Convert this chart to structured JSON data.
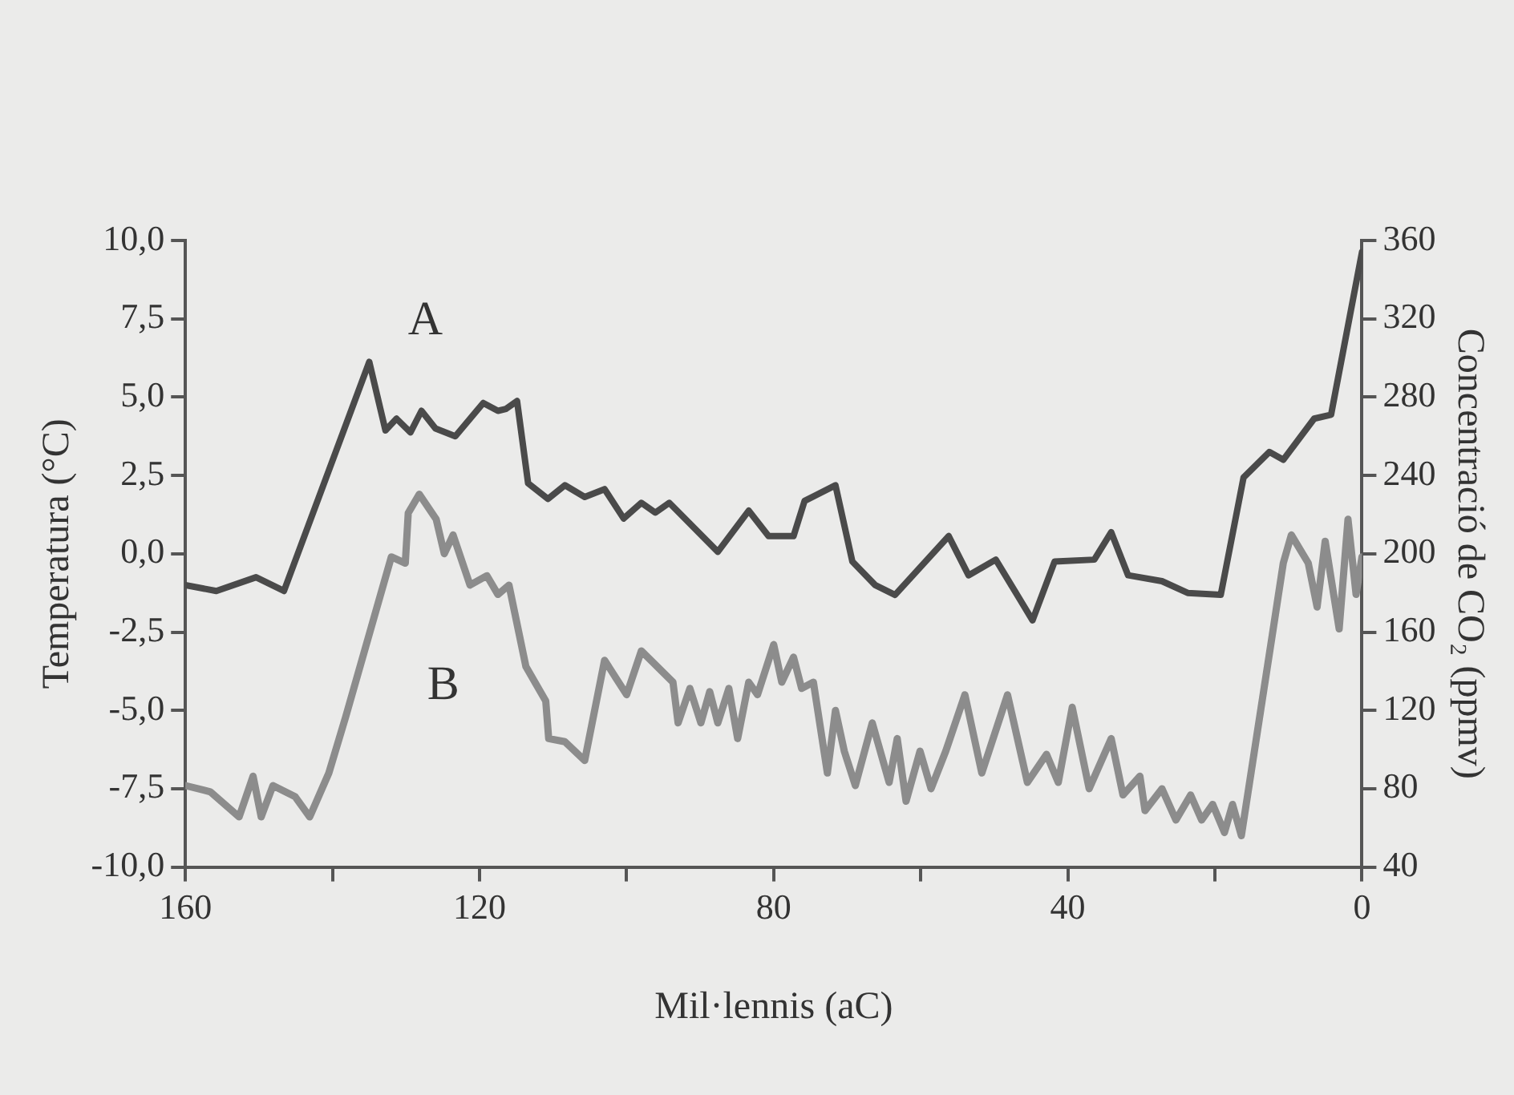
{
  "chart_data": {
    "type": "line",
    "xlabel": "Mil·lennis (aC)",
    "ylabel": "Temperatura (°C)",
    "y2label": "Concentració de CO₂ (ppmv)",
    "xlim": [
      160,
      0
    ],
    "xticks": [
      160,
      {
        "value": 140,
        "label": null
      },
      120,
      {
        "value": 100,
        "label": null
      },
      80,
      {
        "value": 60,
        "label": null
      },
      40,
      {
        "value": 20,
        "label": null
      },
      0
    ],
    "ylim": [
      -10,
      10
    ],
    "yticks": [
      {
        "value": -10,
        "label": "-10,0"
      },
      {
        "value": -7.5,
        "label": "-7,5"
      },
      {
        "value": -5,
        "label": "-5,0"
      },
      {
        "value": -2.5,
        "label": "-2,5"
      },
      {
        "value": 0,
        "label": "0,0"
      },
      {
        "value": 2.5,
        "label": "2,5"
      },
      {
        "value": 5,
        "label": "5,0"
      },
      {
        "value": 7.5,
        "label": "7,5"
      },
      {
        "value": 10,
        "label": "10,0"
      }
    ],
    "y2lim": [
      40,
      360
    ],
    "y2ticks": [
      40,
      80,
      120,
      160,
      200,
      240,
      280,
      320,
      360
    ],
    "grid": false,
    "legend": false,
    "marker": "none",
    "line_style": "solid",
    "series": [
      {
        "name": "A",
        "color": "#4a4a4a",
        "axis": "y2",
        "x": [
          160,
          155.8,
          150.4,
          146.6,
          135,
          132.8,
          131.3,
          129.4,
          127.9,
          126,
          123.3,
          119.5,
          117.5,
          116.4,
          114.9,
          113.4,
          110.7,
          108.4,
          105.7,
          103,
          100.4,
          98,
          96.1,
          94.2,
          87.6,
          83.4,
          80.7,
          77.3,
          75.8,
          71.6,
          69.3,
          66.2,
          63.5,
          56.2,
          53.5,
          49.8,
          44.8,
          41.8,
          36.4,
          34.1,
          31.8,
          27.2,
          23.7,
          19.2,
          16.1,
          12.6,
          10.7,
          6.5,
          4.2,
          0
        ],
        "values": [
          184,
          181,
          188,
          181,
          298,
          263,
          269,
          262,
          273,
          264,
          260,
          277,
          273,
          274,
          278,
          236,
          228,
          235,
          229,
          233,
          218,
          226,
          221,
          226,
          201,
          222,
          209,
          209,
          227,
          235,
          196,
          184,
          179,
          209,
          189,
          197,
          166,
          196,
          197,
          211,
          189,
          186,
          180,
          179,
          239,
          252,
          248,
          269,
          271,
          354
        ]
      },
      {
        "name": "B",
        "color": "#8c8c8c",
        "x": [
          160,
          156.6,
          152.7,
          150.8,
          149.7,
          148.1,
          145.1,
          143.1,
          140.5,
          138.2,
          132,
          130.1,
          129.7,
          128.2,
          125.9,
          124.8,
          123.6,
          121.3,
          119,
          117.5,
          116,
          113.7,
          111,
          110.6,
          108.4,
          105.7,
          103,
          100,
          98,
          93.7,
          93,
          91.4,
          89.9,
          88.7,
          87.6,
          86.1,
          84.9,
          83.4,
          82.2,
          80,
          78.9,
          77.3,
          76.2,
          74.6,
          72.7,
          71.6,
          70.4,
          68.9,
          66.6,
          64.3,
          63.2,
          62,
          60.1,
          58.6,
          56.6,
          54,
          51.7,
          48.2,
          45.5,
          42.9,
          41.3,
          39.4,
          37.1,
          34.1,
          32.5,
          30.2,
          29.5,
          27.2,
          25.3,
          23.3,
          21.8,
          20.3,
          18.7,
          17.6,
          16.4,
          12.2,
          10.7,
          9.6,
          7.3,
          6.1,
          5,
          3.1,
          1.9,
          0.8,
          0
        ],
        "values": [
          -7.4,
          -7.6,
          -8.4,
          -7.1,
          -8.4,
          -7.4,
          -7.75,
          -8.4,
          -7,
          -5.2,
          -0.1,
          -0.3,
          1.3,
          1.9,
          1.1,
          0,
          0.6,
          -1,
          -0.7,
          -1.3,
          -1,
          -3.6,
          -4.7,
          -5.9,
          -6,
          -6.6,
          -3.4,
          -4.5,
          -3.1,
          -4.1,
          -5.4,
          -4.3,
          -5.4,
          -4.4,
          -5.4,
          -4.3,
          -5.9,
          -4.1,
          -4.5,
          -2.9,
          -4.1,
          -3.3,
          -4.3,
          -4.1,
          -7,
          -5,
          -6.3,
          -7.4,
          -5.4,
          -7.3,
          -5.9,
          -7.9,
          -6.3,
          -7.5,
          -6.3,
          -4.5,
          -7,
          -4.5,
          -7.3,
          -6.4,
          -7.3,
          -4.9,
          -7.5,
          -5.9,
          -7.7,
          -7.1,
          -8.2,
          -7.5,
          -8.5,
          -7.7,
          -8.5,
          -8,
          -8.9,
          -8,
          -9,
          -2.6,
          -0.3,
          0.6,
          -0.3,
          -1.7,
          0.4,
          -2.4,
          1.1,
          -1.3,
          -0.1
        ]
      }
    ]
  }
}
